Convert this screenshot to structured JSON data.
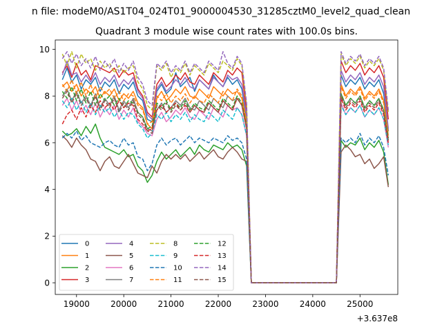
{
  "figure": {
    "suptitle": "n file: modeM0/AS1T04_024T01_9000004530_31285cztM0_level2_quad_clean",
    "offset_label": "+3.637e8"
  },
  "chart_data": {
    "type": "line",
    "title": "Quadrant 3 module wise count rates with 100.0s bins.",
    "xlabel": "",
    "ylabel": "",
    "xlim": [
      18550,
      25800
    ],
    "ylim": [
      -0.5,
      10.4
    ],
    "xticks": [
      19000,
      20000,
      21000,
      22000,
      23000,
      24000,
      25000
    ],
    "yticks": [
      0,
      2,
      4,
      6,
      8,
      10
    ],
    "grid": false,
    "legend_position": "lower-left",
    "x_offset": 363700000,
    "x": [
      18700,
      18800,
      18900,
      19000,
      19100,
      19200,
      19300,
      19400,
      19500,
      19600,
      19700,
      19800,
      19900,
      20000,
      20100,
      20200,
      20300,
      20400,
      20500,
      20600,
      20700,
      20800,
      20900,
      21000,
      21100,
      21200,
      21300,
      21400,
      21500,
      21600,
      21700,
      21800,
      21900,
      22000,
      22100,
      22200,
      22300,
      22400,
      22500,
      22600,
      22700,
      22800,
      22900,
      23000,
      23100,
      23200,
      23300,
      23400,
      23500,
      23600,
      23700,
      23800,
      23900,
      24000,
      24100,
      24200,
      24300,
      24400,
      24500,
      24600,
      24700,
      24800,
      24900,
      25000,
      25100,
      25200,
      25300,
      25400,
      25500,
      25600
    ],
    "series": [
      {
        "name": "0",
        "color": "#1f77b4",
        "dash": "solid",
        "values": [
          8.7,
          9.2,
          8.6,
          8.9,
          8.3,
          8.7,
          8.5,
          8.8,
          8.2,
          8.6,
          8.4,
          8.7,
          8.1,
          8.5,
          8.3,
          8.6,
          8.0,
          7.8,
          7.0,
          6.9,
          8.2,
          8.5,
          8.1,
          8.3,
          9.0,
          8.4,
          8.6,
          8.8,
          8.2,
          8.7,
          8.5,
          8.3,
          8.9,
          8.6,
          8.4,
          8.8,
          8.5,
          8.7,
          8.3,
          7.0,
          0,
          0,
          0,
          0,
          0,
          0,
          0,
          0,
          0,
          0,
          0,
          0,
          0,
          0,
          0,
          0,
          0,
          0,
          0,
          8.9,
          8.4,
          8.7,
          8.5,
          8.8,
          8.3,
          8.6,
          8.4,
          8.7,
          8.1,
          6.5
        ]
      },
      {
        "name": "1",
        "color": "#ff7f0e",
        "dash": "solid",
        "values": [
          8.4,
          8.6,
          8.2,
          8.5,
          8.0,
          8.3,
          8.1,
          8.4,
          7.9,
          8.2,
          8.0,
          8.3,
          7.8,
          8.1,
          7.9,
          8.2,
          7.7,
          7.5,
          6.8,
          6.6,
          7.9,
          8.2,
          7.8,
          8.0,
          8.3,
          8.1,
          8.4,
          8.0,
          7.9,
          8.3,
          8.1,
          7.9,
          8.4,
          8.2,
          8.0,
          8.3,
          8.1,
          8.2,
          7.9,
          6.8,
          0,
          0,
          0,
          0,
          0,
          0,
          0,
          0,
          0,
          0,
          0,
          0,
          0,
          0,
          0,
          0,
          0,
          0,
          0,
          8.5,
          8.0,
          8.3,
          8.1,
          8.4,
          7.9,
          8.2,
          8.0,
          8.3,
          7.8,
          6.3
        ]
      },
      {
        "name": "2",
        "color": "#2ca02c",
        "dash": "solid",
        "values": [
          6.5,
          6.3,
          6.4,
          6.6,
          6.3,
          6.7,
          6.4,
          6.8,
          6.2,
          5.8,
          5.7,
          5.6,
          5.5,
          5.7,
          5.4,
          5.5,
          5.0,
          4.8,
          4.3,
          4.6,
          5.2,
          5.6,
          5.3,
          5.5,
          5.7,
          5.4,
          5.6,
          5.8,
          5.5,
          5.9,
          5.7,
          5.6,
          5.9,
          5.8,
          5.7,
          6.0,
          5.8,
          5.9,
          5.7,
          5.0,
          0,
          0,
          0,
          0,
          0,
          0,
          0,
          0,
          0,
          0,
          0,
          0,
          0,
          0,
          0,
          0,
          0,
          0,
          0,
          6.1,
          5.8,
          6.0,
          5.9,
          6.2,
          5.7,
          6.0,
          5.8,
          6.1,
          5.6,
          4.2
        ]
      },
      {
        "name": "3",
        "color": "#d62728",
        "dash": "solid",
        "values": [
          9.0,
          9.3,
          8.8,
          9.4,
          8.9,
          9.1,
          8.7,
          9.3,
          9.2,
          9.1,
          9.0,
          9.2,
          8.8,
          9.1,
          8.9,
          9.0,
          8.3,
          8.0,
          7.3,
          7.1,
          8.5,
          8.8,
          8.4,
          8.6,
          8.9,
          8.7,
          9.0,
          8.6,
          8.5,
          8.9,
          8.7,
          8.5,
          9.0,
          8.8,
          8.6,
          9.1,
          8.9,
          9.2,
          9.0,
          7.3,
          0,
          0,
          0,
          0,
          0,
          0,
          0,
          0,
          0,
          0,
          0,
          0,
          0,
          0,
          0,
          0,
          0,
          0,
          0,
          9.5,
          9.0,
          9.3,
          9.1,
          9.4,
          8.9,
          9.2,
          9.0,
          9.3,
          8.8,
          7.0
        ]
      },
      {
        "name": "4",
        "color": "#9467bd",
        "dash": "solid",
        "values": [
          8.9,
          9.5,
          8.9,
          9.0,
          8.6,
          8.9,
          8.6,
          9.0,
          8.5,
          8.8,
          8.6,
          8.9,
          8.4,
          8.7,
          8.5,
          8.8,
          8.2,
          7.9,
          7.2,
          7.0,
          8.3,
          8.6,
          8.2,
          8.4,
          8.7,
          8.5,
          8.8,
          8.4,
          8.3,
          8.7,
          8.5,
          8.3,
          8.8,
          8.6,
          8.4,
          8.9,
          8.7,
          8.8,
          8.5,
          7.1,
          0,
          0,
          0,
          0,
          0,
          0,
          0,
          0,
          0,
          0,
          0,
          0,
          0,
          0,
          0,
          0,
          0,
          0,
          0,
          9.1,
          8.6,
          8.9,
          8.7,
          9.0,
          8.5,
          8.8,
          8.6,
          8.9,
          8.4,
          6.6
        ]
      },
      {
        "name": "5",
        "color": "#8c564b",
        "dash": "solid",
        "values": [
          6.3,
          6.1,
          5.8,
          6.2,
          5.9,
          5.7,
          5.3,
          5.2,
          4.8,
          5.2,
          5.4,
          5.0,
          4.9,
          5.2,
          5.5,
          5.1,
          4.7,
          4.6,
          4.5,
          5.0,
          4.7,
          5.2,
          5.5,
          5.3,
          5.5,
          5.3,
          5.5,
          5.2,
          5.4,
          5.6,
          5.3,
          5.5,
          5.7,
          5.4,
          5.3,
          5.6,
          5.8,
          5.6,
          5.3,
          5.2,
          0,
          0,
          0,
          0,
          0,
          0,
          0,
          0,
          0,
          0,
          0,
          0,
          0,
          0,
          0,
          0,
          0,
          0,
          0,
          5.6,
          5.9,
          5.7,
          5.4,
          5.5,
          5.1,
          5.3,
          4.9,
          5.1,
          5.4,
          4.1
        ]
      },
      {
        "name": "6",
        "color": "#e377c2",
        "dash": "solid",
        "values": [
          7.6,
          7.9,
          7.4,
          7.8,
          7.3,
          7.6,
          7.2,
          7.7,
          7.1,
          7.5,
          7.2,
          7.6,
          7.0,
          7.4,
          7.1,
          7.5,
          6.9,
          6.7,
          6.4,
          6.3,
          7.0,
          7.3,
          6.9,
          7.1,
          7.4,
          7.2,
          7.5,
          7.1,
          7.0,
          7.4,
          7.2,
          7.0,
          7.5,
          7.3,
          7.1,
          7.6,
          7.4,
          7.5,
          7.2,
          6.3,
          0,
          0,
          0,
          0,
          0,
          0,
          0,
          0,
          0,
          0,
          0,
          0,
          0,
          0,
          0,
          0,
          0,
          0,
          0,
          7.7,
          7.2,
          7.5,
          7.3,
          7.6,
          7.1,
          7.4,
          7.2,
          7.5,
          7.0,
          5.8
        ]
      },
      {
        "name": "7",
        "color": "#7f7f7f",
        "dash": "solid",
        "values": [
          8.0,
          8.3,
          7.8,
          8.2,
          7.7,
          8.0,
          7.6,
          8.1,
          7.5,
          7.9,
          7.6,
          8.0,
          7.4,
          7.8,
          7.5,
          7.9,
          7.3,
          7.1,
          6.6,
          6.5,
          7.4,
          7.7,
          7.3,
          7.5,
          7.8,
          7.6,
          7.9,
          7.5,
          7.4,
          7.8,
          7.6,
          7.4,
          7.9,
          7.7,
          7.5,
          8.0,
          7.8,
          7.9,
          7.6,
          6.6,
          0,
          0,
          0,
          0,
          0,
          0,
          0,
          0,
          0,
          0,
          0,
          0,
          0,
          0,
          0,
          0,
          0,
          0,
          0,
          8.1,
          7.6,
          7.9,
          7.7,
          8.0,
          7.5,
          7.8,
          7.6,
          7.9,
          7.4,
          6.1
        ]
      },
      {
        "name": "8",
        "color": "#bcbd22",
        "dash": "dashed",
        "values": [
          9.8,
          9.3,
          9.9,
          9.2,
          9.8,
          9.4,
          9.6,
          9.1,
          9.5,
          9.2,
          9.4,
          9.0,
          9.3,
          9.0,
          9.2,
          9.3,
          8.6,
          8.3,
          7.6,
          7.4,
          9.3,
          9.1,
          9.4,
          8.8,
          9.2,
          9.0,
          9.4,
          8.9,
          9.3,
          9.1,
          8.9,
          9.4,
          9.2,
          9.0,
          9.5,
          9.3,
          9.1,
          9.6,
          9.3,
          7.6,
          0,
          0,
          0,
          0,
          0,
          0,
          0,
          0,
          0,
          0,
          0,
          0,
          0,
          0,
          0,
          0,
          0,
          0,
          0,
          9.8,
          9.3,
          9.6,
          9.4,
          9.7,
          9.2,
          9.5,
          9.3,
          9.6,
          9.1,
          7.3
        ]
      },
      {
        "name": "9",
        "color": "#17becf",
        "dash": "dashed",
        "values": [
          7.8,
          7.5,
          7.9,
          7.4,
          7.8,
          7.3,
          7.7,
          7.2,
          7.6,
          7.3,
          7.5,
          7.1,
          7.4,
          7.0,
          7.3,
          7.2,
          6.8,
          6.6,
          6.2,
          6.4,
          7.2,
          7.0,
          7.3,
          6.9,
          7.2,
          7.0,
          7.3,
          6.9,
          7.2,
          7.0,
          6.9,
          7.3,
          7.1,
          6.9,
          7.4,
          7.2,
          7.0,
          7.5,
          7.2,
          6.3,
          0,
          0,
          0,
          0,
          0,
          0,
          0,
          0,
          0,
          0,
          0,
          0,
          0,
          0,
          0,
          0,
          0,
          0,
          0,
          7.6,
          7.2,
          7.5,
          7.3,
          7.6,
          7.1,
          7.4,
          7.2,
          7.5,
          7.0,
          5.9
        ]
      },
      {
        "name": "10",
        "color": "#1f77b4",
        "dash": "dashed",
        "values": [
          6.2,
          6.4,
          6.2,
          6.5,
          6.1,
          6.3,
          6.0,
          5.9,
          5.8,
          6.0,
          6.1,
          5.9,
          5.8,
          6.2,
          5.9,
          6.0,
          5.4,
          5.3,
          4.8,
          5.1,
          5.9,
          6.2,
          5.9,
          6.1,
          6.2,
          5.9,
          6.1,
          6.3,
          6.0,
          6.2,
          6.1,
          6.0,
          6.2,
          6.1,
          6.0,
          6.3,
          6.1,
          6.2,
          6.0,
          5.3,
          0,
          0,
          0,
          0,
          0,
          0,
          0,
          0,
          0,
          0,
          0,
          0,
          0,
          0,
          0,
          0,
          0,
          0,
          0,
          6.2,
          6.0,
          6.2,
          6.0,
          6.4,
          5.9,
          6.2,
          6.0,
          6.3,
          5.8,
          4.6
        ]
      },
      {
        "name": "11",
        "color": "#ff7f0e",
        "dash": "dashed",
        "values": [
          8.5,
          8.2,
          8.7,
          8.1,
          8.6,
          8.0,
          8.5,
          7.9,
          8.4,
          8.1,
          8.3,
          7.9,
          8.2,
          7.8,
          8.1,
          8.0,
          7.6,
          7.4,
          6.8,
          6.9,
          8.0,
          7.8,
          8.1,
          7.7,
          8.0,
          7.8,
          8.1,
          7.7,
          8.0,
          7.8,
          7.7,
          8.1,
          7.9,
          7.7,
          8.2,
          8.0,
          7.8,
          8.3,
          8.0,
          6.9,
          0,
          0,
          0,
          0,
          0,
          0,
          0,
          0,
          0,
          0,
          0,
          0,
          0,
          0,
          0,
          0,
          0,
          0,
          0,
          8.4,
          7.9,
          8.2,
          8.0,
          8.3,
          7.8,
          8.1,
          7.9,
          8.2,
          7.7,
          6.4
        ]
      },
      {
        "name": "12",
        "color": "#2ca02c",
        "dash": "dashed",
        "values": [
          8.2,
          7.9,
          8.4,
          7.8,
          8.3,
          7.7,
          8.2,
          7.6,
          8.1,
          7.8,
          8.0,
          7.6,
          7.9,
          7.5,
          7.8,
          7.7,
          7.3,
          7.1,
          6.6,
          6.7,
          7.7,
          7.5,
          7.8,
          7.4,
          7.7,
          7.5,
          7.8,
          7.4,
          7.7,
          7.5,
          7.4,
          7.8,
          7.6,
          7.4,
          7.9,
          7.7,
          7.5,
          8.0,
          7.7,
          6.7,
          0,
          0,
          0,
          0,
          0,
          0,
          0,
          0,
          0,
          0,
          0,
          0,
          0,
          0,
          0,
          0,
          0,
          0,
          0,
          8.1,
          7.6,
          7.9,
          7.7,
          8.0,
          7.5,
          7.8,
          7.6,
          7.9,
          7.4,
          6.2
        ]
      },
      {
        "name": "13",
        "color": "#d62728",
        "dash": "dashed",
        "values": [
          6.8,
          7.2,
          7.4,
          7.0,
          7.5,
          7.1,
          7.6,
          7.3,
          7.8,
          7.5,
          7.7,
          7.4,
          7.8,
          7.5,
          7.7,
          7.6,
          7.0,
          6.8,
          6.5,
          6.6,
          7.4,
          7.6,
          7.3,
          7.5,
          7.7,
          7.4,
          7.6,
          7.3,
          7.6,
          7.4,
          7.3,
          7.7,
          7.5,
          7.3,
          7.8,
          7.6,
          7.4,
          7.9,
          7.6,
          6.6,
          0,
          0,
          0,
          0,
          0,
          0,
          0,
          0,
          0,
          0,
          0,
          0,
          0,
          0,
          0,
          0,
          0,
          0,
          0,
          7.9,
          7.4,
          7.7,
          7.5,
          7.8,
          7.3,
          7.6,
          7.4,
          7.7,
          7.2,
          6.0
        ]
      },
      {
        "name": "14",
        "color": "#9467bd",
        "dash": "dashed",
        "values": [
          9.6,
          9.9,
          9.4,
          9.8,
          9.3,
          9.6,
          9.2,
          9.7,
          9.1,
          9.5,
          9.2,
          9.6,
          9.0,
          9.4,
          9.1,
          9.5,
          8.8,
          8.5,
          7.8,
          7.6,
          9.4,
          9.2,
          9.5,
          9.0,
          9.3,
          9.1,
          9.5,
          9.0,
          9.4,
          9.2,
          9.0,
          9.5,
          9.3,
          9.1,
          9.9,
          9.4,
          9.2,
          9.7,
          9.4,
          7.7,
          0,
          0,
          0,
          0,
          0,
          0,
          0,
          0,
          0,
          0,
          0,
          0,
          0,
          0,
          0,
          0,
          0,
          0,
          0,
          9.9,
          9.4,
          9.7,
          9.5,
          9.8,
          9.3,
          9.6,
          9.4,
          9.7,
          9.2,
          7.4
        ]
      },
      {
        "name": "15",
        "color": "#8c564b",
        "dash": "dashed",
        "values": [
          7.9,
          8.2,
          7.7,
          8.1,
          7.6,
          7.9,
          7.5,
          8.0,
          7.4,
          7.8,
          7.5,
          7.9,
          7.3,
          7.7,
          7.4,
          7.8,
          7.2,
          7.0,
          6.5,
          6.4,
          7.6,
          7.4,
          7.7,
          7.3,
          7.6,
          7.4,
          7.7,
          7.3,
          7.6,
          7.4,
          7.3,
          7.7,
          7.5,
          7.3,
          7.8,
          7.6,
          7.4,
          7.9,
          7.6,
          6.6,
          0,
          0,
          0,
          0,
          0,
          0,
          0,
          0,
          0,
          0,
          0,
          0,
          0,
          0,
          0,
          0,
          0,
          0,
          0,
          8.0,
          7.5,
          7.8,
          7.6,
          7.9,
          7.4,
          7.7,
          7.5,
          7.8,
          7.3,
          6.1
        ]
      }
    ]
  }
}
